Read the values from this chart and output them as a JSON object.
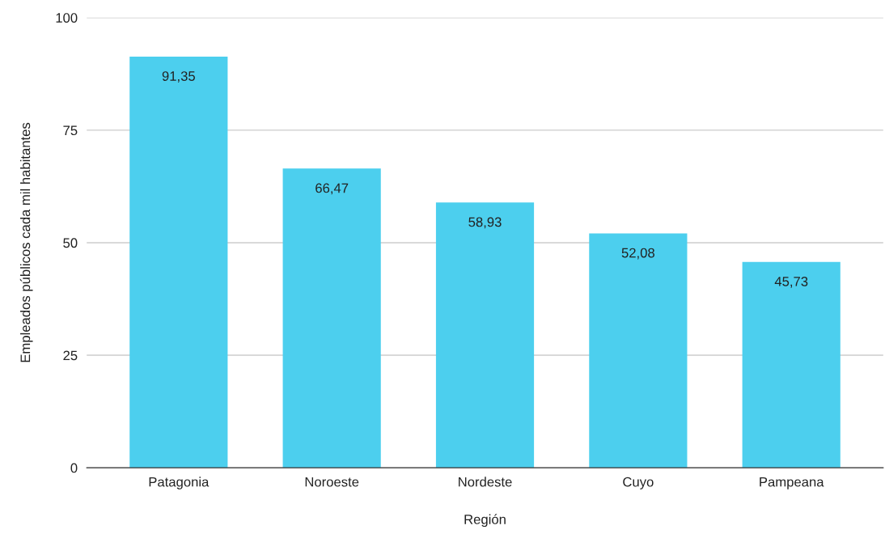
{
  "chart_data": {
    "type": "bar",
    "xlabel": "Región",
    "ylabel": "Empleados públicos cada mil habitantes",
    "categories": [
      "Patagonia",
      "Noroeste",
      "Nordeste",
      "Cuyo",
      "Pampeana"
    ],
    "values": [
      91.35,
      66.47,
      58.93,
      52.08,
      45.73
    ],
    "value_labels": [
      "91,35",
      "66,47",
      "58,93",
      "52,08",
      "45,73"
    ],
    "color": "#4ccfee",
    "ylim": [
      0,
      100
    ],
    "yticks": [
      0,
      25,
      50,
      75,
      100
    ],
    "grid": "y",
    "legend": false
  }
}
